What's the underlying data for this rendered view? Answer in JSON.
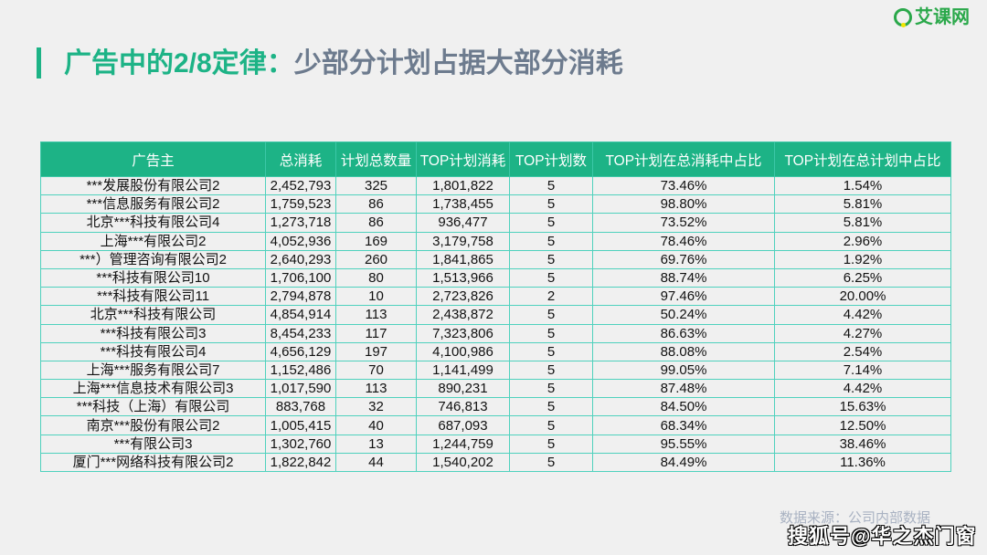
{
  "title": {
    "highlight": "广告中的2/8定律：",
    "rest": "少部分计划占据大部分消耗"
  },
  "logo": {
    "text": "艾课网",
    "icon": "logo-circle-icon"
  },
  "colors": {
    "accent": "#1db386",
    "title_gray": "#6d7b8e",
    "border": "#4fd1bd"
  },
  "table": {
    "headers": [
      "广告主",
      "总消耗",
      "计划总数量",
      "TOP计划消耗",
      "TOP计划数",
      "TOP计划在总消耗中占比",
      "TOP计划在总计划中占比"
    ],
    "rows": [
      [
        "***发展股份有限公司2",
        "2,452,793",
        "325",
        "1,801,822",
        "5",
        "73.46%",
        "1.54%"
      ],
      [
        "***信息服务有限公司2",
        "1,759,523",
        "86",
        "1,738,455",
        "5",
        "98.80%",
        "5.81%"
      ],
      [
        "北京***科技有限公司4",
        "1,273,718",
        "86",
        "936,477",
        "5",
        "73.52%",
        "5.81%"
      ],
      [
        "上海***有限公司2",
        "4,052,936",
        "169",
        "3,179,758",
        "5",
        "78.46%",
        "2.96%"
      ],
      [
        "***）管理咨询有限公司2",
        "2,640,293",
        "260",
        "1,841,865",
        "5",
        "69.76%",
        "1.92%"
      ],
      [
        "***科技有限公司10",
        "1,706,100",
        "80",
        "1,513,966",
        "5",
        "88.74%",
        "6.25%"
      ],
      [
        "***科技有限公司11",
        "2,794,878",
        "10",
        "2,723,826",
        "2",
        "97.46%",
        "20.00%"
      ],
      [
        "北京***科技有限公司",
        "4,854,914",
        "113",
        "2,438,872",
        "5",
        "50.24%",
        "4.42%"
      ],
      [
        "***科技有限公司3",
        "8,454,233",
        "117",
        "7,323,806",
        "5",
        "86.63%",
        "4.27%"
      ],
      [
        "***科技有限公司4",
        "4,656,129",
        "197",
        "4,100,986",
        "5",
        "88.08%",
        "2.54%"
      ],
      [
        "上海***服务有限公司7",
        "1,152,486",
        "70",
        "1,141,499",
        "5",
        "99.05%",
        "7.14%"
      ],
      [
        "上海***信息技术有限公司3",
        "1,017,590",
        "113",
        "890,231",
        "5",
        "87.48%",
        "4.42%"
      ],
      [
        "***科技（上海）有限公司",
        "883,768",
        "32",
        "746,813",
        "5",
        "84.50%",
        "15.63%"
      ],
      [
        "南京***股份有限公司2",
        "1,005,415",
        "40",
        "687,093",
        "5",
        "68.34%",
        "12.50%"
      ],
      [
        "***有限公司3",
        "1,302,760",
        "13",
        "1,244,759",
        "5",
        "95.55%",
        "38.46%"
      ],
      [
        "厦门***网络科技有限公司2",
        "1,822,842",
        "44",
        "1,540,202",
        "5",
        "84.49%",
        "11.36%"
      ]
    ]
  },
  "footer": {
    "source": "数据来源：公司内部数据",
    "watermark": "搜狐号@华之杰门窗"
  }
}
